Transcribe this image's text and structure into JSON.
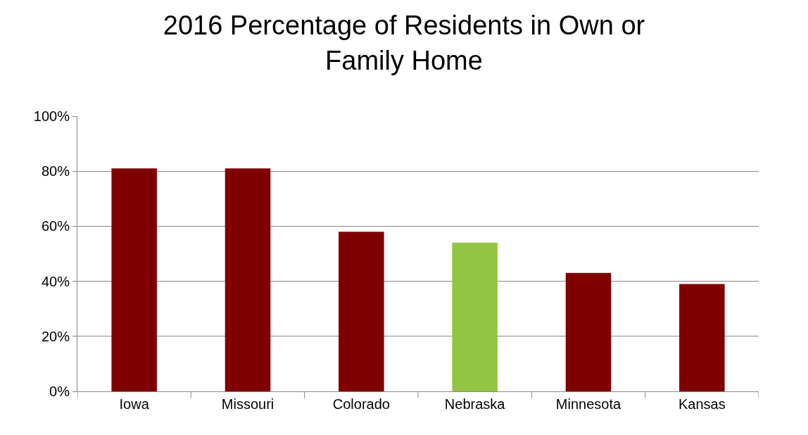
{
  "chart_data": {
    "type": "bar",
    "title": "2016 Percentage of Residents in Own or\nFamily Home",
    "categories": [
      "Iowa",
      "Missouri",
      "Colorado",
      "Nebraska",
      "Minnesota",
      "Kansas"
    ],
    "values": [
      81,
      81,
      58,
      54,
      43,
      39
    ],
    "colors": [
      "#800000",
      "#800000",
      "#800000",
      "#92c543",
      "#800000",
      "#800000"
    ],
    "ylim": [
      0,
      100
    ],
    "yticks": [
      {
        "value": 0,
        "label": "0%"
      },
      {
        "value": 20,
        "label": "20%"
      },
      {
        "value": 40,
        "label": "40%"
      },
      {
        "value": 60,
        "label": "60%"
      },
      {
        "value": 80,
        "label": "80%"
      },
      {
        "value": 100,
        "label": "100%"
      }
    ],
    "grid": "y",
    "legend": false
  }
}
